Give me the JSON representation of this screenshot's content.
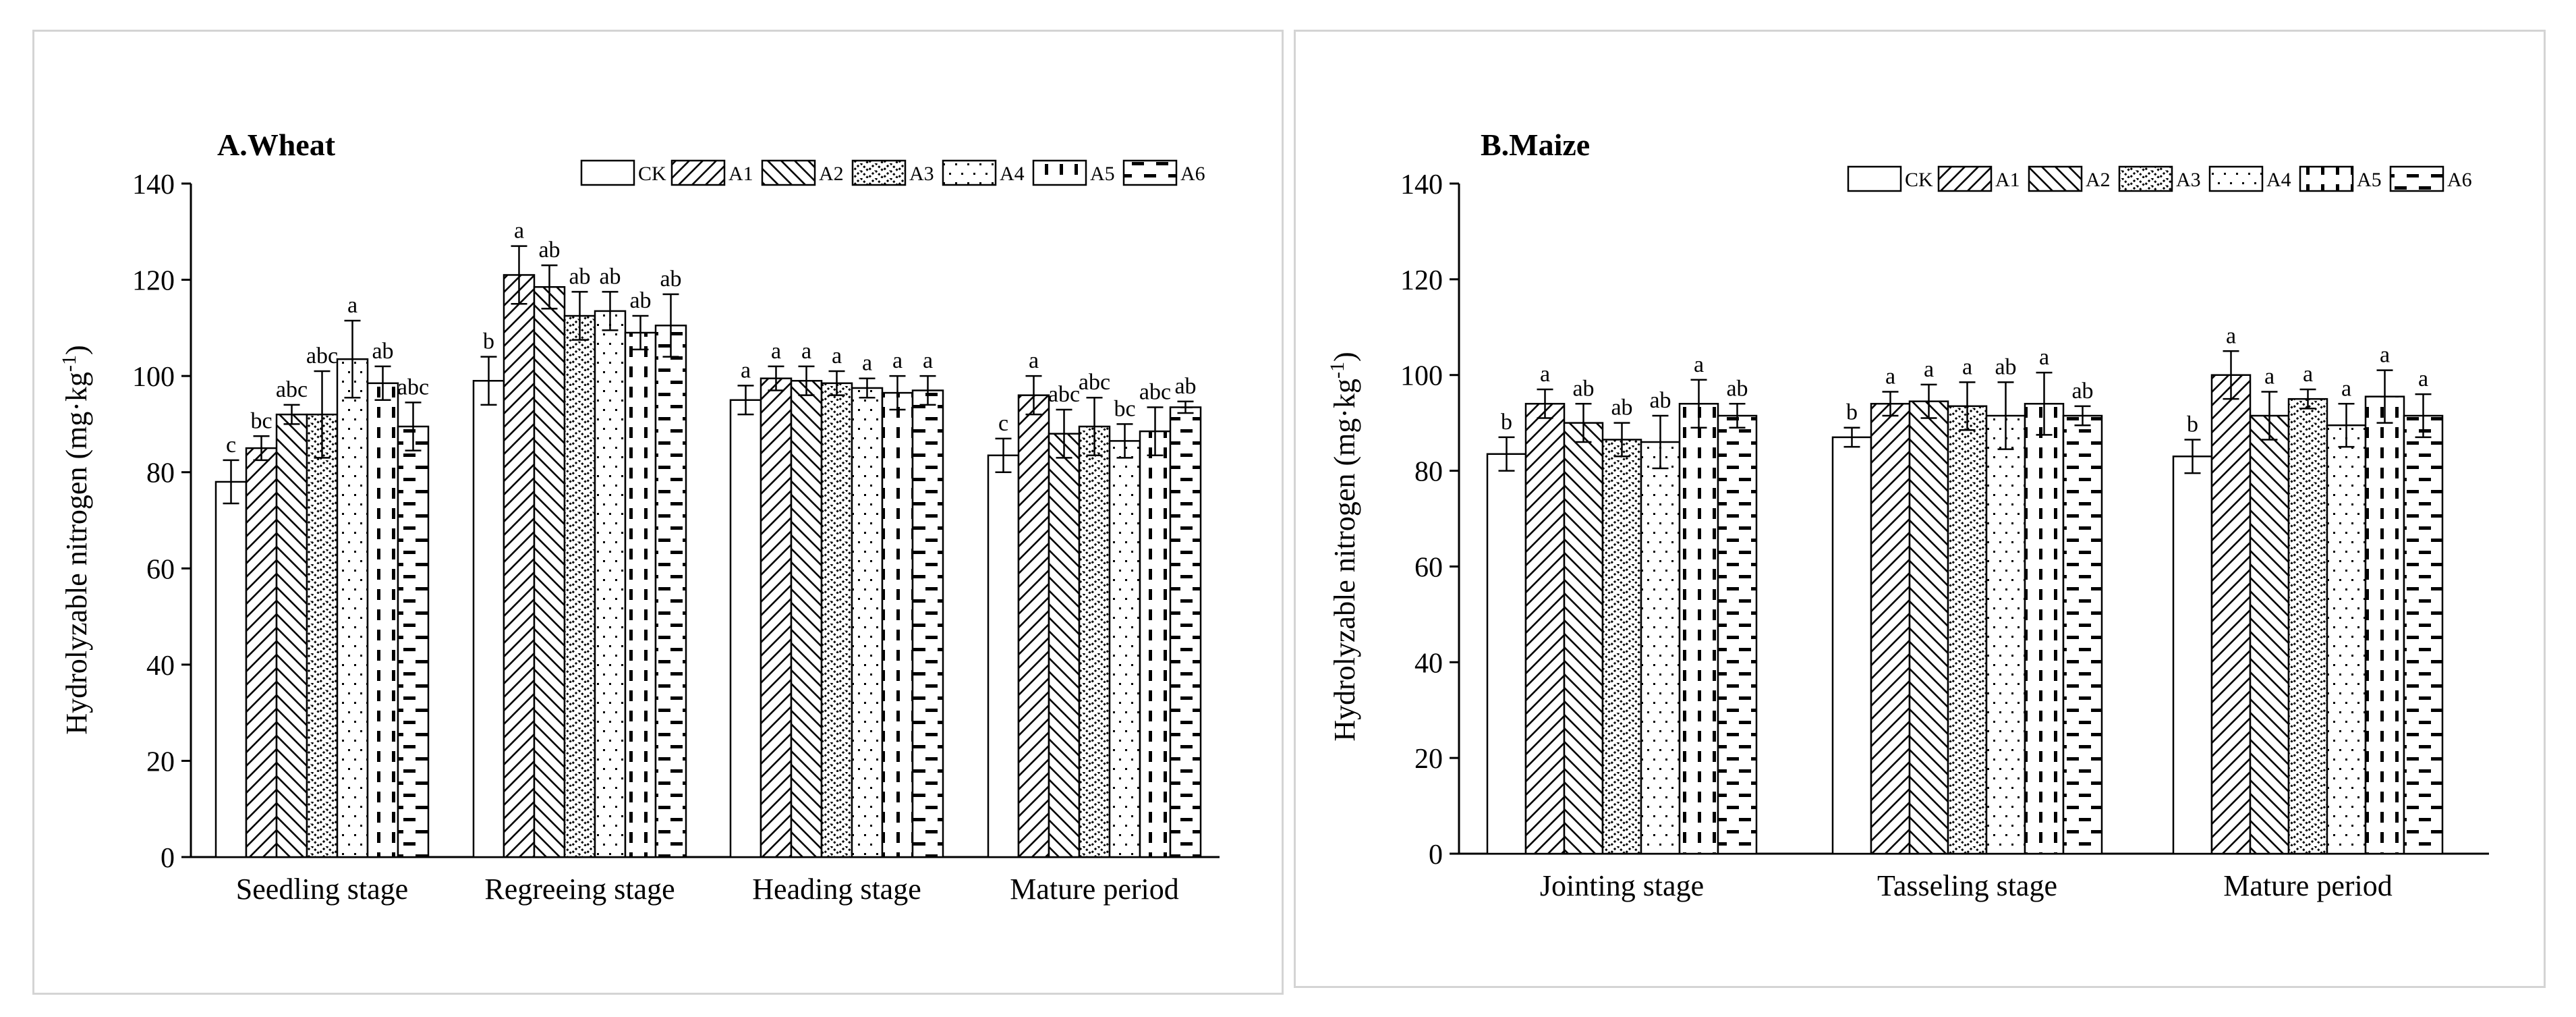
{
  "y_unit_label": "Hydrolyzable nitrogen (mg·kg",
  "y_unit_exponent": "-1",
  "y_unit_close": ")",
  "colors": {
    "bar_fill": "#ffffff",
    "ink": "#000000",
    "frame": "#d4d4d4"
  },
  "chart_data": [
    {
      "type": "bar",
      "title": "A.Wheat",
      "xlabel": "",
      "ylabel": "Hydrolyzable nitrogen (mg·kg-1)",
      "ylim": [
        0,
        140
      ],
      "yticks": [
        0,
        20,
        40,
        60,
        80,
        100,
        120,
        140
      ],
      "legend_position": "top-right",
      "categories": [
        "Seedling stage",
        "Regreeing stage",
        "Heading stage",
        "Mature period"
      ],
      "series": [
        {
          "name": "CK",
          "pattern": "empty",
          "values": [
            78,
            99,
            95,
            83.5
          ],
          "errors": [
            4.5,
            5,
            3,
            3.5
          ],
          "letters": [
            "c",
            "b",
            "a",
            "c"
          ]
        },
        {
          "name": "A1",
          "pattern": "fwd-diag",
          "values": [
            85,
            121,
            99.5,
            96
          ],
          "errors": [
            2.5,
            6,
            2.5,
            4
          ],
          "letters": [
            "bc",
            "a",
            "a",
            "a"
          ]
        },
        {
          "name": "A2",
          "pattern": "back-diag",
          "values": [
            92,
            118.5,
            99,
            88
          ],
          "errors": [
            2,
            4.5,
            3,
            5
          ],
          "letters": [
            "abc",
            "ab",
            "a",
            "abc"
          ]
        },
        {
          "name": "A3",
          "pattern": "zigzag",
          "values": [
            92,
            112.5,
            98.5,
            89.5
          ],
          "errors": [
            9,
            5,
            2.5,
            6
          ],
          "letters": [
            "abc",
            "ab",
            "a",
            "abc"
          ]
        },
        {
          "name": "A4",
          "pattern": "dots",
          "values": [
            103.5,
            113.5,
            97.5,
            86.5
          ],
          "errors": [
            8,
            4,
            2,
            3.5
          ],
          "letters": [
            "a",
            "ab",
            "a",
            "bc"
          ]
        },
        {
          "name": "A5",
          "pattern": "vdash",
          "values": [
            98.5,
            109,
            96.5,
            88.5
          ],
          "errors": [
            3.5,
            3.5,
            3.5,
            5
          ],
          "letters": [
            "ab",
            "ab",
            "a",
            "abc"
          ]
        },
        {
          "name": "A6",
          "pattern": "hdash",
          "values": [
            89.5,
            110.5,
            97,
            93.5
          ],
          "errors": [
            5,
            6.5,
            3,
            1.2
          ],
          "letters": [
            "abc",
            "ab",
            "a",
            "ab"
          ]
        }
      ]
    },
    {
      "type": "bar",
      "title": "B.Maize",
      "xlabel": "",
      "ylabel": "Hydrolyzable nitrogen (mg·kg-1)",
      "ylim": [
        0,
        140
      ],
      "yticks": [
        0,
        20,
        40,
        60,
        80,
        100,
        120,
        140
      ],
      "legend_position": "top-right",
      "categories": [
        "Jointing stage",
        "Tasseling stage",
        "Mature period"
      ],
      "series": [
        {
          "name": "CK",
          "pattern": "empty",
          "values": [
            83.5,
            87,
            83
          ],
          "errors": [
            3.5,
            2,
            3.5
          ],
          "letters": [
            "b",
            "b",
            "b"
          ]
        },
        {
          "name": "A1",
          "pattern": "fwd-diag",
          "values": [
            94,
            94,
            100
          ],
          "errors": [
            3,
            2.5,
            5
          ],
          "letters": [
            "a",
            "a",
            "a"
          ]
        },
        {
          "name": "A2",
          "pattern": "back-diag",
          "values": [
            90,
            94.5,
            91.5
          ],
          "errors": [
            4,
            3.5,
            5
          ],
          "letters": [
            "ab",
            "a",
            "a"
          ]
        },
        {
          "name": "A3",
          "pattern": "zigzag",
          "values": [
            86.5,
            93.5,
            95
          ],
          "errors": [
            3.5,
            5,
            2
          ],
          "letters": [
            "ab",
            "a",
            "a"
          ]
        },
        {
          "name": "A4",
          "pattern": "dots",
          "values": [
            86,
            91.5,
            89.5
          ],
          "errors": [
            5.5,
            7,
            4.5
          ],
          "letters": [
            "ab",
            "ab",
            "a"
          ]
        },
        {
          "name": "A5",
          "pattern": "vdash",
          "values": [
            94,
            94,
            95.5
          ],
          "errors": [
            5,
            6.5,
            5.5
          ],
          "letters": [
            "a",
            "a",
            "a"
          ]
        },
        {
          "name": "A6",
          "pattern": "hdash",
          "values": [
            91.5,
            91.5,
            91.5
          ],
          "errors": [
            2.5,
            2,
            4.5
          ],
          "letters": [
            "ab",
            "ab",
            "a"
          ]
        }
      ]
    }
  ]
}
